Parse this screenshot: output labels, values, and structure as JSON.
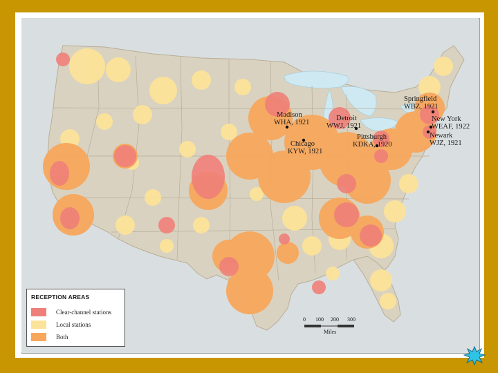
{
  "colors": {
    "page_background": "#c79600",
    "land": "#d9d2c0",
    "water": "#cfe9f2",
    "clear_channel": "#ef8079",
    "local": "#fce39a",
    "both": "#f7a75c"
  },
  "cities": [
    {
      "city": "Madison",
      "station": "WHA, 1921"
    },
    {
      "city": "Detroit",
      "station": "WWJ, 1921"
    },
    {
      "city": "Chicago",
      "station": "KYW, 1921"
    },
    {
      "city": "Pittsburgh",
      "station": "KDKA, 1920"
    },
    {
      "city": "Springfield",
      "station": "WBZ, 1921"
    },
    {
      "city": "New York",
      "station": "WEAF, 1922"
    },
    {
      "city": "Newark",
      "station": "WJZ, 1921"
    }
  ],
  "legend": {
    "title": "RECEPTION AREAS",
    "items": [
      {
        "label": "Clear-channel stations",
        "color": "#ef8079"
      },
      {
        "label": "Local stations",
        "color": "#fce39a"
      },
      {
        "label": "Both",
        "color": "#f7a75c"
      }
    ]
  },
  "scale": {
    "ticks": [
      "0",
      "100",
      "200",
      "300"
    ],
    "unit": "Miles"
  },
  "nav_icon": "starburst-next-icon"
}
